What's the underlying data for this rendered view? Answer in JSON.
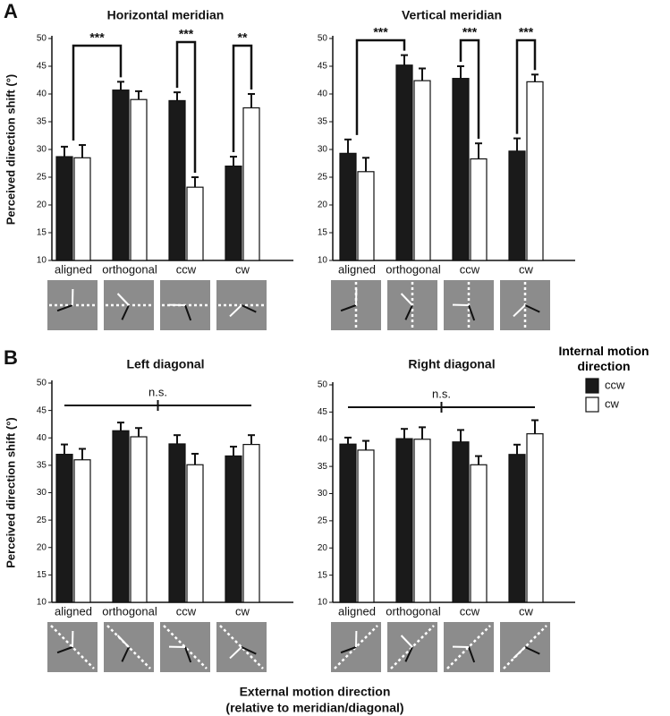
{
  "panel_labels": [
    "A",
    "B"
  ],
  "xlabel": [
    "External motion direction",
    "(relative to meridian/diagonal)"
  ],
  "legend_title": "Internal motion direction",
  "chart_data": [
    {
      "type": "bar",
      "title": "Horizontal meridian",
      "ylabel": "Perceived direction shift (°)",
      "categories": [
        "aligned",
        "orthogonal",
        "ccw",
        "cw"
      ],
      "series": [
        {
          "name": "ccw",
          "color": "#1a1a1a",
          "values": [
            28.7,
            40.7,
            38.8,
            27.0
          ],
          "errors": [
            1.8,
            1.5,
            1.5,
            1.7
          ]
        },
        {
          "name": "cw",
          "color": "#ffffff",
          "values": [
            28.5,
            39.0,
            23.2,
            37.5
          ],
          "errors": [
            2.3,
            1.5,
            1.8,
            2.5
          ]
        }
      ],
      "ylim": [
        10,
        50
      ],
      "yticks": [
        10,
        15,
        20,
        25,
        30,
        35,
        40,
        45,
        50
      ],
      "annotations": [
        "***",
        "***",
        "**"
      ]
    },
    {
      "type": "bar",
      "title": "Vertical meridian",
      "categories": [
        "aligned",
        "orthogonal",
        "ccw",
        "cw"
      ],
      "series": [
        {
          "name": "ccw",
          "color": "#1a1a1a",
          "values": [
            29.3,
            45.2,
            42.8,
            29.7
          ],
          "errors": [
            2.5,
            1.8,
            2.2,
            2.3
          ]
        },
        {
          "name": "cw",
          "color": "#ffffff",
          "values": [
            26.0,
            42.4,
            28.3,
            42.2
          ],
          "errors": [
            2.5,
            2.2,
            2.8,
            1.3
          ]
        }
      ],
      "ylim": [
        10,
        50
      ],
      "yticks": [
        10,
        15,
        20,
        25,
        30,
        35,
        40,
        45,
        50
      ],
      "annotations": [
        "***",
        "***",
        "***"
      ]
    },
    {
      "type": "bar",
      "title": "Left diagonal",
      "ylabel": "Perceived direction shift (°)",
      "categories": [
        "aligned",
        "orthogonal",
        "ccw",
        "cw"
      ],
      "series": [
        {
          "name": "ccw",
          "color": "#1a1a1a",
          "values": [
            37.0,
            41.3,
            38.9,
            36.7
          ],
          "errors": [
            1.8,
            1.5,
            1.6,
            1.7
          ]
        },
        {
          "name": "cw",
          "color": "#ffffff",
          "values": [
            36.0,
            40.2,
            35.1,
            38.8
          ],
          "errors": [
            2.0,
            1.6,
            2.0,
            1.7
          ]
        }
      ],
      "ylim": [
        10,
        50
      ],
      "yticks": [
        10,
        15,
        20,
        25,
        30,
        35,
        40,
        45,
        50
      ],
      "annotations": [
        "n.s."
      ]
    },
    {
      "type": "bar",
      "title": "Right diagonal",
      "categories": [
        "aligned",
        "orthogonal",
        "ccw",
        "cw"
      ],
      "series": [
        {
          "name": "ccw",
          "color": "#1a1a1a",
          "values": [
            39.1,
            40.1,
            39.5,
            37.2
          ],
          "errors": [
            1.2,
            1.8,
            2.2,
            1.8
          ]
        },
        {
          "name": "cw",
          "color": "#ffffff",
          "values": [
            38.0,
            40.0,
            35.3,
            41.0
          ],
          "errors": [
            1.7,
            2.2,
            1.6,
            2.5
          ]
        }
      ],
      "ylim": [
        10,
        50
      ],
      "yticks": [
        10,
        15,
        20,
        25,
        30,
        35,
        40,
        45,
        50
      ],
      "annotations": [
        "n.s."
      ]
    }
  ]
}
